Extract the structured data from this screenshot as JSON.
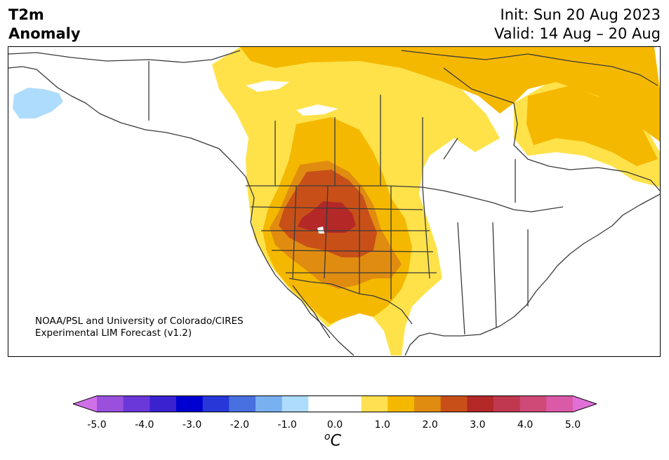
{
  "header": {
    "title_line1": "T2m",
    "title_line2": "Anomaly",
    "init": "Init: Sun 20 Aug 2023",
    "valid": "Valid: 14 Aug – 20 Aug"
  },
  "credit": {
    "line1": "NOAA/PSL and University of Colorado/CIRES",
    "line2": "Experimental LIM Forecast (v1.2)"
  },
  "colorbar": {
    "colors": [
      "#d070e8",
      "#9a50dc",
      "#6a38d8",
      "#3a22d0",
      "#0000d0",
      "#2838d8",
      "#4870e0",
      "#78b0f0",
      "#aedcfc",
      "#ffffff",
      "#ffffff",
      "#ffe050",
      "#f5b800",
      "#e08c10",
      "#c85018",
      "#b42828",
      "#c03850",
      "#d04a78",
      "#da5aa8",
      "#e070d8"
    ],
    "tick_labels": [
      "-5.0",
      "-4.0",
      "-3.0",
      "-2.0",
      "-1.0",
      "0.0",
      "1.0",
      "2.0",
      "3.0",
      "4.0",
      "5.0"
    ],
    "unit_base": "C",
    "unit_sup": "o"
  },
  "legend_colors": {
    "light_yellow": "#ffe24a",
    "yellow": "#f5b800",
    "orange": "#e08c10",
    "dark_orange": "#c85018",
    "red": "#b42828",
    "light_blue": "#aedcfc",
    "coast": "#3a3a3a"
  }
}
